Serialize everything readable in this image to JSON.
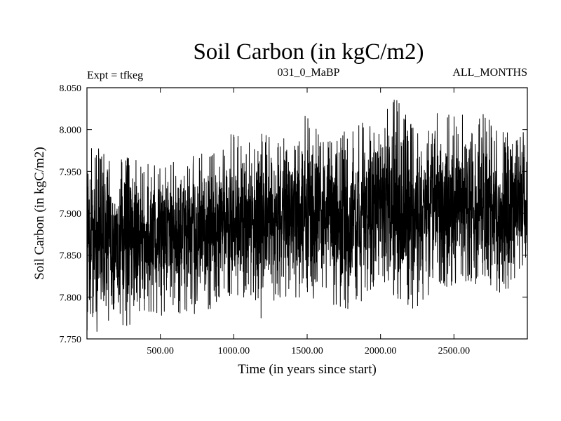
{
  "chart_data": {
    "type": "line",
    "title": "Soil Carbon (in kgC/m2)",
    "subtitle_left": "Expt = tfkeg",
    "subtitle_center": "031_0_MaBP",
    "subtitle_right": "ALL_MONTHS",
    "xlabel": "Time (in years since start)",
    "ylabel": "Soil Carbon (in kgC/m2)",
    "xlim": [
      0,
      3000
    ],
    "ylim": [
      7.75,
      8.05
    ],
    "grid": false,
    "xticks": [
      500,
      1000,
      1500,
      2000,
      2500
    ],
    "xtick_labels": [
      "500.00",
      "1000.00",
      "1500.00",
      "2000.00",
      "2500.00"
    ],
    "yticks": [
      7.75,
      7.8,
      7.85,
      7.9,
      7.95,
      8.0,
      8.05
    ],
    "ytick_labels": [
      "7.750",
      "7.800",
      "7.850",
      "7.900",
      "7.950",
      "8.000",
      "8.050"
    ],
    "line_color": "#000000",
    "series": [
      {
        "x": [
          0,
          100,
          200,
          300,
          400,
          500,
          600,
          700,
          800,
          900,
          1000,
          1100,
          1200,
          1300,
          1400,
          1500,
          1600,
          1700,
          1800,
          1900,
          2000,
          2100,
          2200,
          2300,
          2400,
          2500,
          2600,
          2700,
          2800,
          2900,
          3000
        ],
        "mean": [
          7.875,
          7.87,
          7.865,
          7.868,
          7.872,
          7.87,
          7.872,
          7.875,
          7.872,
          7.885,
          7.89,
          7.895,
          7.89,
          7.895,
          7.9,
          7.905,
          7.9,
          7.895,
          7.89,
          7.9,
          7.915,
          7.912,
          7.895,
          7.895,
          7.905,
          7.912,
          7.915,
          7.905,
          7.895,
          7.9,
          7.905
        ],
        "min": [
          7.76,
          7.755,
          7.775,
          7.757,
          7.78,
          7.775,
          7.778,
          7.785,
          7.77,
          7.8,
          7.8,
          7.8,
          7.768,
          7.8,
          7.8,
          7.8,
          7.795,
          7.79,
          7.785,
          7.8,
          7.825,
          7.8,
          7.775,
          7.8,
          7.81,
          7.815,
          7.82,
          7.81,
          7.8,
          7.815,
          7.82
        ],
        "max": [
          7.985,
          7.975,
          7.97,
          7.965,
          7.96,
          7.955,
          7.965,
          7.975,
          7.97,
          7.975,
          8.0,
          7.99,
          7.995,
          7.985,
          7.995,
          8.025,
          7.985,
          8.0,
          7.995,
          8.015,
          8.025,
          8.04,
          8.01,
          7.99,
          8.025,
          8.025,
          8.02,
          8.02,
          8.0,
          7.995,
          8.0
        ]
      }
    ]
  }
}
